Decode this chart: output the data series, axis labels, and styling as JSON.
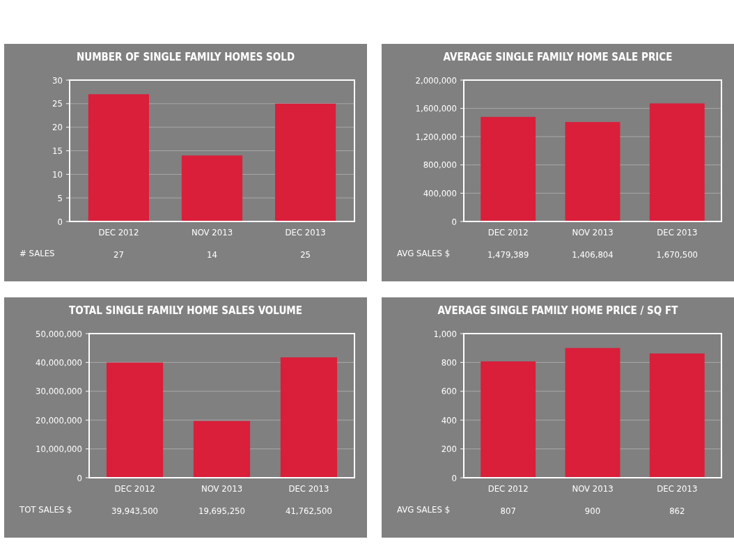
{
  "chart_data": [
    {
      "type": "bar",
      "title": "NUMBER OF SINGLE FAMILY HOMES SOLD",
      "categories": [
        "DEC 2012",
        "NOV 2013",
        "DEC 2013"
      ],
      "values": [
        27,
        14,
        25
      ],
      "color": "#d91f3a",
      "ylim": [
        0,
        30
      ],
      "yticks": [
        0,
        5,
        10,
        15,
        20,
        25,
        30
      ],
      "grid": "y",
      "value_labels": [
        "27",
        "14",
        "25"
      ],
      "annotations": [
        "# SALES"
      ]
    },
    {
      "type": "bar",
      "title": "AVERAGE SINGLE FAMILY HOME SALE PRICE",
      "categories": [
        "DEC 2012",
        "NOV 2013",
        "DEC 2013"
      ],
      "values": [
        1479389,
        1406804,
        1670500
      ],
      "color": "#d91f3a",
      "ylim": [
        0,
        2000000
      ],
      "yticks": [
        0,
        {
          "value": 400000,
          "label": "400,000"
        },
        {
          "value": 800000,
          "label": "800,000"
        },
        {
          "value": 1200000,
          "label": "1,200,000"
        },
        {
          "value": 1600000,
          "label": "1,600,000"
        },
        {
          "value": 2000000,
          "label": "2,000,000"
        }
      ],
      "grid": "y",
      "value_labels": [
        "1,479,389",
        "1,406,804",
        "1,670,500"
      ],
      "annotations": [
        "AVG SALES $"
      ]
    },
    {
      "type": "bar",
      "title": "TOTAL SINGLE FAMILY HOME SALES VOLUME",
      "categories": [
        "DEC 2012",
        "NOV 2013",
        "DEC 2013"
      ],
      "values": [
        39943500,
        19695250,
        41762500
      ],
      "color": "#d91f3a",
      "ylim": [
        0,
        50000000
      ],
      "yticks": [
        0,
        {
          "value": 10000000,
          "label": "10,000,000"
        },
        {
          "value": 20000000,
          "label": "20,000,000"
        },
        {
          "value": 30000000,
          "label": "30,000,000"
        },
        {
          "value": 40000000,
          "label": "40,000,000"
        },
        {
          "value": 50000000,
          "label": "50,000,000"
        }
      ],
      "grid": "y",
      "value_labels": [
        "39,943,500",
        "19,695,250",
        "41,762,500"
      ],
      "annotations": [
        "TOT SALES $"
      ]
    },
    {
      "type": "bar",
      "title": "AVERAGE SINGLE FAMILY HOME PRICE / SQ FT",
      "categories": [
        "DEC 2012",
        "NOV 2013",
        "DEC 2013"
      ],
      "values": [
        807,
        900,
        862
      ],
      "color": "#d91f3a",
      "ylim": [
        0,
        1000
      ],
      "yticks": [
        0,
        200,
        400,
        600,
        800,
        {
          "value": 1000,
          "label": "1,000"
        }
      ],
      "grid": "y",
      "value_labels": [
        "807",
        "900",
        "862"
      ],
      "annotations": [
        "AVG SALES $"
      ]
    }
  ]
}
